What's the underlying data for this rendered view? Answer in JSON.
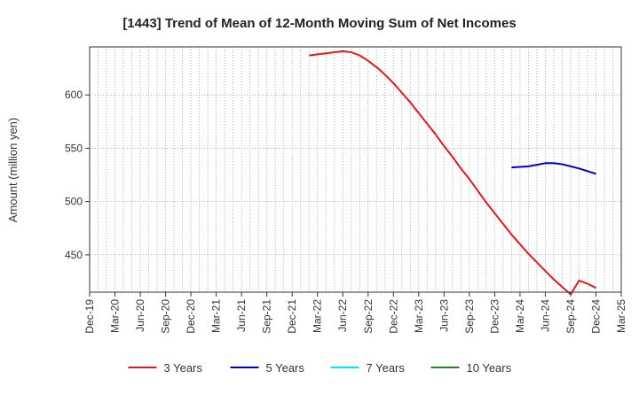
{
  "chart_data": {
    "type": "line",
    "title": "[1443]  Trend of Mean of 12-Month Moving Sum of Net Incomes",
    "ylabel": "Amount (million yen)",
    "xlabel": "",
    "ylim": [
      415,
      645
    ],
    "yticks": [
      450,
      500,
      550,
      600
    ],
    "x_tick_labels": [
      "Dec-19",
      "Mar-20",
      "Jun-20",
      "Sep-20",
      "Dec-20",
      "Mar-21",
      "Jun-21",
      "Sep-21",
      "Dec-21",
      "Mar-22",
      "Jun-22",
      "Sep-22",
      "Dec-22",
      "Mar-23",
      "Jun-23",
      "Sep-23",
      "Dec-23",
      "Mar-24",
      "Jun-24",
      "Sep-24",
      "Dec-24",
      "Mar-25"
    ],
    "grid": true,
    "legend_position": "bottom",
    "series": [
      {
        "name": "3 Years",
        "color": "#e31a1c",
        "x": [
          "Feb-22",
          "Mar-22",
          "Apr-22",
          "May-22",
          "Jun-22",
          "Jul-22",
          "Aug-22",
          "Sep-22",
          "Oct-22",
          "Nov-22",
          "Dec-22",
          "Jan-23",
          "Feb-23",
          "Mar-23",
          "Apr-23",
          "May-23",
          "Jun-23",
          "Jul-23",
          "Aug-23",
          "Sep-23",
          "Oct-23",
          "Nov-23",
          "Dec-23",
          "Jan-24",
          "Feb-24",
          "Mar-24",
          "Apr-24",
          "May-24",
          "Jun-24",
          "Jul-24",
          "Aug-24",
          "Sep-24",
          "Oct-24",
          "Nov-24",
          "Dec-24"
        ],
        "values": [
          637,
          638,
          639,
          640,
          641,
          640,
          637,
          632,
          626,
          619,
          611,
          602,
          593,
          583,
          573,
          563,
          552,
          542,
          531,
          521,
          510,
          499,
          489,
          479,
          469,
          460,
          451,
          443,
          435,
          427,
          420,
          413,
          426,
          423,
          419
        ]
      },
      {
        "name": "5 Years",
        "color": "#0000cc",
        "x": [
          "Feb-24",
          "Mar-24",
          "Apr-24",
          "May-24",
          "Jun-24",
          "Jul-24",
          "Aug-24",
          "Sep-24",
          "Oct-24",
          "Nov-24",
          "Dec-24"
        ],
        "values": [
          532,
          532.5,
          533,
          534.5,
          536,
          536,
          535,
          533,
          531,
          528.5,
          526
        ]
      },
      {
        "name": "7 Years",
        "color": "#00e5ff",
        "x": [],
        "values": []
      },
      {
        "name": "10 Years",
        "color": "#228b22",
        "x": [],
        "values": []
      }
    ]
  }
}
